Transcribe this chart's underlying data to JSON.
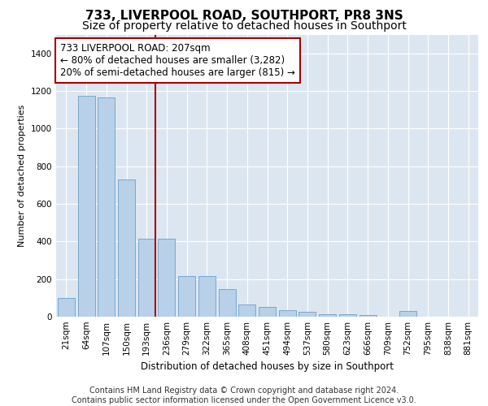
{
  "title": "733, LIVERPOOL ROAD, SOUTHPORT, PR8 3NS",
  "subtitle": "Size of property relative to detached houses in Southport",
  "xlabel": "Distribution of detached houses by size in Southport",
  "ylabel": "Number of detached properties",
  "categories": [
    "21sqm",
    "64sqm",
    "107sqm",
    "150sqm",
    "193sqm",
    "236sqm",
    "279sqm",
    "322sqm",
    "365sqm",
    "408sqm",
    "451sqm",
    "494sqm",
    "537sqm",
    "580sqm",
    "623sqm",
    "666sqm",
    "709sqm",
    "752sqm",
    "795sqm",
    "838sqm",
    "881sqm"
  ],
  "values": [
    100,
    1175,
    1165,
    730,
    415,
    415,
    215,
    215,
    145,
    65,
    50,
    35,
    25,
    15,
    15,
    10,
    0,
    30,
    0,
    0,
    0
  ],
  "bar_color": "#b8d0e8",
  "bar_edge_color": "#6aa0cc",
  "vline_color": "#aa0000",
  "annotation_text": "733 LIVERPOOL ROAD: 207sqm\n← 80% of detached houses are smaller (3,282)\n20% of semi-detached houses are larger (815) →",
  "annotation_box_color": "#ffffff",
  "annotation_box_edge": "#aa0000",
  "ylim": [
    0,
    1500
  ],
  "yticks": [
    0,
    200,
    400,
    600,
    800,
    1000,
    1200,
    1400
  ],
  "background_color": "#dce6f0",
  "grid_color": "#ffffff",
  "footer_text": "Contains HM Land Registry data © Crown copyright and database right 2024.\nContains public sector information licensed under the Open Government Licence v3.0.",
  "title_fontsize": 11,
  "subtitle_fontsize": 10,
  "annotation_fontsize": 8.5,
  "tick_fontsize": 7.5,
  "ylabel_fontsize": 8,
  "xlabel_fontsize": 8.5,
  "footer_fontsize": 7
}
